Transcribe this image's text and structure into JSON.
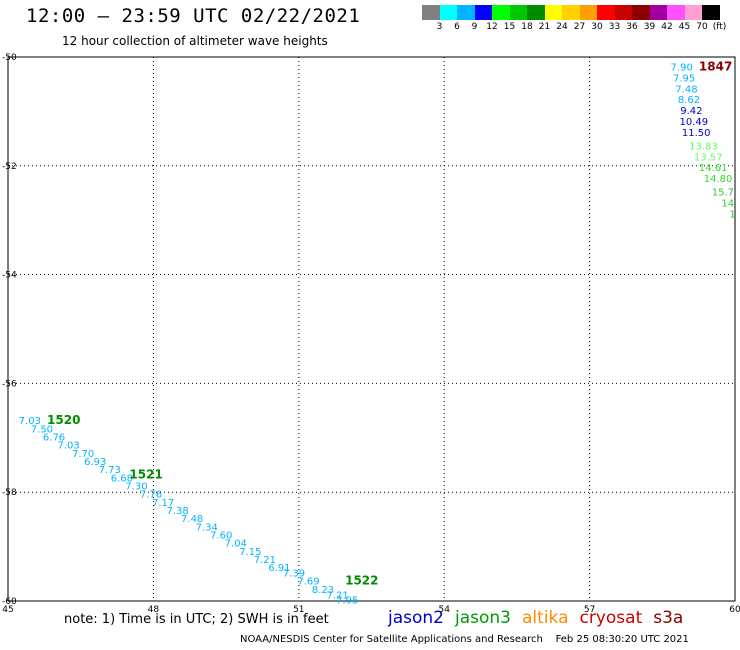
{
  "header": {
    "title": "12:00 — 23:59 UTC 02/22/2021",
    "subtitle": "12 hour collection of altimeter wave heights"
  },
  "colorbar": {
    "colors": [
      "#808080",
      "#00ffff",
      "#00b4ff",
      "#0000ff",
      "#00ff00",
      "#00c800",
      "#008c00",
      "#ffff00",
      "#ffd200",
      "#ffa000",
      "#ff0000",
      "#c80000",
      "#8c0000",
      "#a000a0",
      "#ff50ff",
      "#ffa0d2",
      "#000000"
    ],
    "labels": [
      "3",
      "6",
      "9",
      "12",
      "15",
      "18",
      "21",
      "24",
      "27",
      "30",
      "33",
      "36",
      "39",
      "42",
      "45",
      "70",
      "(ft)"
    ]
  },
  "note": "note: 1) Time is in UTC; 2) SWH is in feet",
  "legend": [
    {
      "label": "jason2",
      "color": "#0000cc"
    },
    {
      "label": "jason3",
      "color": "#009900"
    },
    {
      "label": "altika",
      "color": "#ff8c00"
    },
    {
      "label": "cryosat",
      "color": "#cc0000"
    },
    {
      "label": "s3a",
      "color": "#8b0000"
    }
  ],
  "footer": "NOAA/NESDIS Center for Satellite Applications and Research    Feb 25 08:30:20 UTC 2021",
  "chart_data": {
    "type": "scatter",
    "xlim": [
      45,
      60
    ],
    "ylim": [
      -60,
      -50
    ],
    "x_ticks": [
      "45",
      "48",
      "51",
      "54",
      "57",
      "60"
    ],
    "y_ticks": [
      "-50",
      "-52",
      "-54",
      "-56",
      "-58",
      "-60"
    ],
    "grid": true,
    "time_labels": [
      {
        "x": 46.15,
        "y": -56.75,
        "text": "1520",
        "color": "#008c00"
      },
      {
        "x": 47.85,
        "y": -57.75,
        "text": "1521",
        "color": "#008c00"
      },
      {
        "x": 52.3,
        "y": -59.7,
        "text": "1522",
        "color": "#008c00"
      },
      {
        "x": 59.6,
        "y": -50.25,
        "text": "1847",
        "color": "#8c0000"
      }
    ],
    "points": [
      {
        "x": 45.45,
        "y": -56.75,
        "v": "7.03",
        "color": "#00b4ff"
      },
      {
        "x": 45.7,
        "y": -56.9,
        "v": "7.50",
        "color": "#00b4ff"
      },
      {
        "x": 45.95,
        "y": -57.05,
        "v": "6.76",
        "color": "#00b4ff"
      },
      {
        "x": 46.25,
        "y": -57.2,
        "v": "7.03",
        "color": "#00b4ff"
      },
      {
        "x": 46.55,
        "y": -57.35,
        "v": "7.70",
        "color": "#00b4ff"
      },
      {
        "x": 46.8,
        "y": -57.5,
        "v": "6.93",
        "color": "#00b4ff"
      },
      {
        "x": 47.1,
        "y": -57.65,
        "v": "7.73",
        "color": "#00b4ff"
      },
      {
        "x": 47.35,
        "y": -57.8,
        "v": "6.68",
        "color": "#00b4ff"
      },
      {
        "x": 47.65,
        "y": -57.95,
        "v": "7.30",
        "color": "#00b4ff"
      },
      {
        "x": 47.95,
        "y": -58.1,
        "v": "7.76",
        "color": "#00b4ff"
      },
      {
        "x": 48.2,
        "y": -58.25,
        "v": "7.17",
        "color": "#00b4ff"
      },
      {
        "x": 48.5,
        "y": -58.4,
        "v": "7.38",
        "color": "#00b4ff"
      },
      {
        "x": 48.8,
        "y": -58.55,
        "v": "7.48",
        "color": "#00b4ff"
      },
      {
        "x": 49.1,
        "y": -58.7,
        "v": "7.34",
        "color": "#00b4ff"
      },
      {
        "x": 49.4,
        "y": -58.85,
        "v": "7.60",
        "color": "#00b4ff"
      },
      {
        "x": 49.7,
        "y": -59.0,
        "v": "7.04",
        "color": "#00b4ff"
      },
      {
        "x": 50.0,
        "y": -59.15,
        "v": "7.15",
        "color": "#00b4ff"
      },
      {
        "x": 50.3,
        "y": -59.3,
        "v": "7.21",
        "color": "#00b4ff"
      },
      {
        "x": 50.6,
        "y": -59.45,
        "v": "6.91",
        "color": "#00b4ff"
      },
      {
        "x": 50.9,
        "y": -59.55,
        "v": "7.39",
        "color": "#00b4ff"
      },
      {
        "x": 51.2,
        "y": -59.7,
        "v": "7.69",
        "color": "#00b4ff"
      },
      {
        "x": 51.5,
        "y": -59.85,
        "v": "8.23",
        "color": "#00b4ff"
      },
      {
        "x": 51.8,
        "y": -59.95,
        "v": "7.21",
        "color": "#00b4ff"
      },
      {
        "x": 52.0,
        "y": -60.05,
        "v": "7.95",
        "color": "#00b4ff"
      },
      {
        "x": 58.9,
        "y": -50.25,
        "v": "7.90",
        "color": "#00b4ff"
      },
      {
        "x": 58.95,
        "y": -50.45,
        "v": "7.95",
        "color": "#00b4ff"
      },
      {
        "x": 59.0,
        "y": -50.65,
        "v": "7.48",
        "color": "#00b4ff"
      },
      {
        "x": 59.05,
        "y": -50.85,
        "v": "8.62",
        "color": "#00b4ff"
      },
      {
        "x": 59.1,
        "y": -51.05,
        "v": "9.42",
        "color": "#0000c8"
      },
      {
        "x": 59.15,
        "y": -51.25,
        "v": "10.49",
        "color": "#0000c8"
      },
      {
        "x": 59.2,
        "y": -51.45,
        "v": "11.50",
        "color": "#0000c8"
      },
      {
        "x": 59.35,
        "y": -51.7,
        "v": "13.83",
        "color": "#64ff64"
      },
      {
        "x": 59.45,
        "y": -51.9,
        "v": "13.57",
        "color": "#64ff64"
      },
      {
        "x": 59.55,
        "y": -52.1,
        "v": "14.61",
        "color": "#32dc32"
      },
      {
        "x": 59.65,
        "y": -52.3,
        "v": "14.80",
        "color": "#32dc32"
      },
      {
        "x": 59.75,
        "y": -52.55,
        "v": "15.7",
        "color": "#32c832"
      },
      {
        "x": 59.85,
        "y": -52.75,
        "v": "14",
        "color": "#32c832"
      },
      {
        "x": 59.95,
        "y": -52.95,
        "v": "1",
        "color": "#32c832"
      }
    ]
  }
}
